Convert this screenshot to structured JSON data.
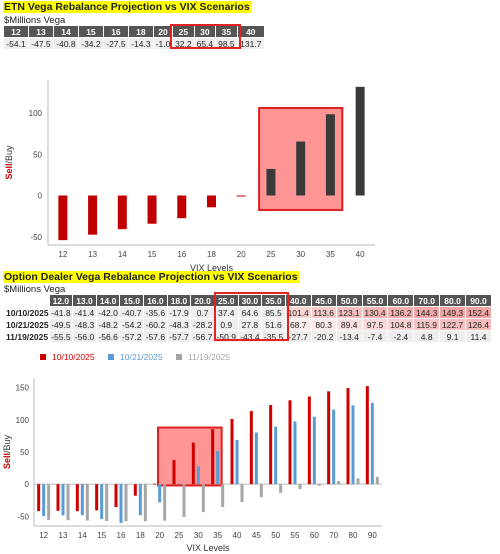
{
  "etn": {
    "title": "ETN Vega Rebalance Projection vs VIX Scenarios",
    "subtitle": "$Millions Vega",
    "table": {
      "headers": [
        "12",
        "13",
        "14",
        "15",
        "16",
        "18",
        "20",
        "25",
        "30",
        "35",
        "40"
      ],
      "values": [
        "-54.1",
        "-47.5",
        "-40.8",
        "-34.2",
        "-27.5",
        "-14.3",
        "-1.0",
        "32.2",
        "65.4",
        "98.5",
        "131.7"
      ]
    }
  },
  "dealer": {
    "title": "Option Dealer Vega Rebalance Projection vs VIX Scenarios",
    "subtitle": "$Millions Vega",
    "table": {
      "headers": [
        "12.0",
        "13.0",
        "14.0",
        "15.0",
        "16.0",
        "18.0",
        "20.0",
        "25.0",
        "30.0",
        "35.0",
        "40.0",
        "45.0",
        "50.0",
        "55.0",
        "60.0",
        "70.0",
        "80.0",
        "90.0"
      ],
      "rows": [
        {
          "label": "10/10/2025",
          "values": [
            "-41.8",
            "-41.4",
            "-42.0",
            "-40.7",
            "-35.6",
            "-17.9",
            "0.7",
            "37.4",
            "64.6",
            "85.5",
            "101.4",
            "113.6",
            "123.1",
            "130.4",
            "136.2",
            "144.3",
            "149.3",
            "152.4"
          ]
        },
        {
          "label": "10/21/2025",
          "values": [
            "-49.5",
            "-48.3",
            "-48.2",
            "-54.2",
            "-60.2",
            "-48.3",
            "-28.2",
            "0.9",
            "27.8",
            "51.6",
            "68.7",
            "80.3",
            "89.4",
            "97.5",
            "104.8",
            "115.9",
            "122.7",
            "126.4"
          ]
        },
        {
          "label": "11/19/2025",
          "values": [
            "-55.5",
            "-56.0",
            "-56.6",
            "-57.2",
            "-57.6",
            "-57.7",
            "-56.7",
            "-50.9",
            "-43.4",
            "-35.5",
            "-27.7",
            "-20.2",
            "-13.4",
            "-7.4",
            "-2.4",
            "4.8",
            "9.1",
            "11.4"
          ]
        }
      ]
    }
  },
  "chart_data": [
    {
      "type": "bar",
      "categories": [
        "12",
        "13",
        "14",
        "15",
        "16",
        "18",
        "20",
        "25",
        "30",
        "35",
        "40"
      ],
      "values": [
        -54.1,
        -47.5,
        -40.8,
        -34.2,
        -27.5,
        -14.3,
        -1.0,
        32.2,
        65.4,
        98.5,
        131.7
      ],
      "colors": [
        "#c00000",
        "#c00000",
        "#c00000",
        "#c00000",
        "#c00000",
        "#c00000",
        "#c00000",
        "#3a3a3a",
        "#3a3a3a",
        "#3a3a3a",
        "#3a3a3a"
      ],
      "xlabel": "VIX Levels",
      "ylabel": "Sell/Buy",
      "ylim": [
        -60,
        140
      ],
      "yticks": [
        -50,
        0,
        50,
        100
      ],
      "grid": false
    },
    {
      "type": "bar",
      "categories": [
        "12",
        "13",
        "14",
        "15",
        "16",
        "18",
        "20",
        "25",
        "30",
        "35",
        "40",
        "45",
        "50",
        "55",
        "60",
        "70",
        "80",
        "90"
      ],
      "series": [
        {
          "name": "10/10/2025",
          "color": "#d00000",
          "values": [
            -41.8,
            -41.4,
            -42.0,
            -40.7,
            -35.6,
            -17.9,
            0.7,
            37.4,
            64.6,
            85.5,
            101.4,
            113.6,
            123.1,
            130.4,
            136.2,
            144.3,
            149.3,
            152.4
          ]
        },
        {
          "name": "10/21/2025",
          "color": "#5b9bd5",
          "values": [
            -49.5,
            -48.3,
            -48.2,
            -54.2,
            -60.2,
            -48.3,
            -28.2,
            0.9,
            27.8,
            51.6,
            68.7,
            80.3,
            89.4,
            97.5,
            104.8,
            115.9,
            122.7,
            126.4
          ]
        },
        {
          "name": "11/19/2025",
          "color": "#a6a6a6",
          "values": [
            -55.5,
            -56.0,
            -56.6,
            -57.2,
            -57.6,
            -57.7,
            -56.7,
            -50.9,
            -43.4,
            -35.5,
            -27.7,
            -20.2,
            -13.4,
            -7.4,
            -2.4,
            4.8,
            9.1,
            11.4
          ]
        }
      ],
      "xlabel": "VIX Levels",
      "ylabel": "Sell/Buy",
      "ylim": [
        -65,
        165
      ],
      "yticks": [
        -50,
        0,
        50,
        100,
        150
      ],
      "legend": "top",
      "grid": false
    }
  ]
}
